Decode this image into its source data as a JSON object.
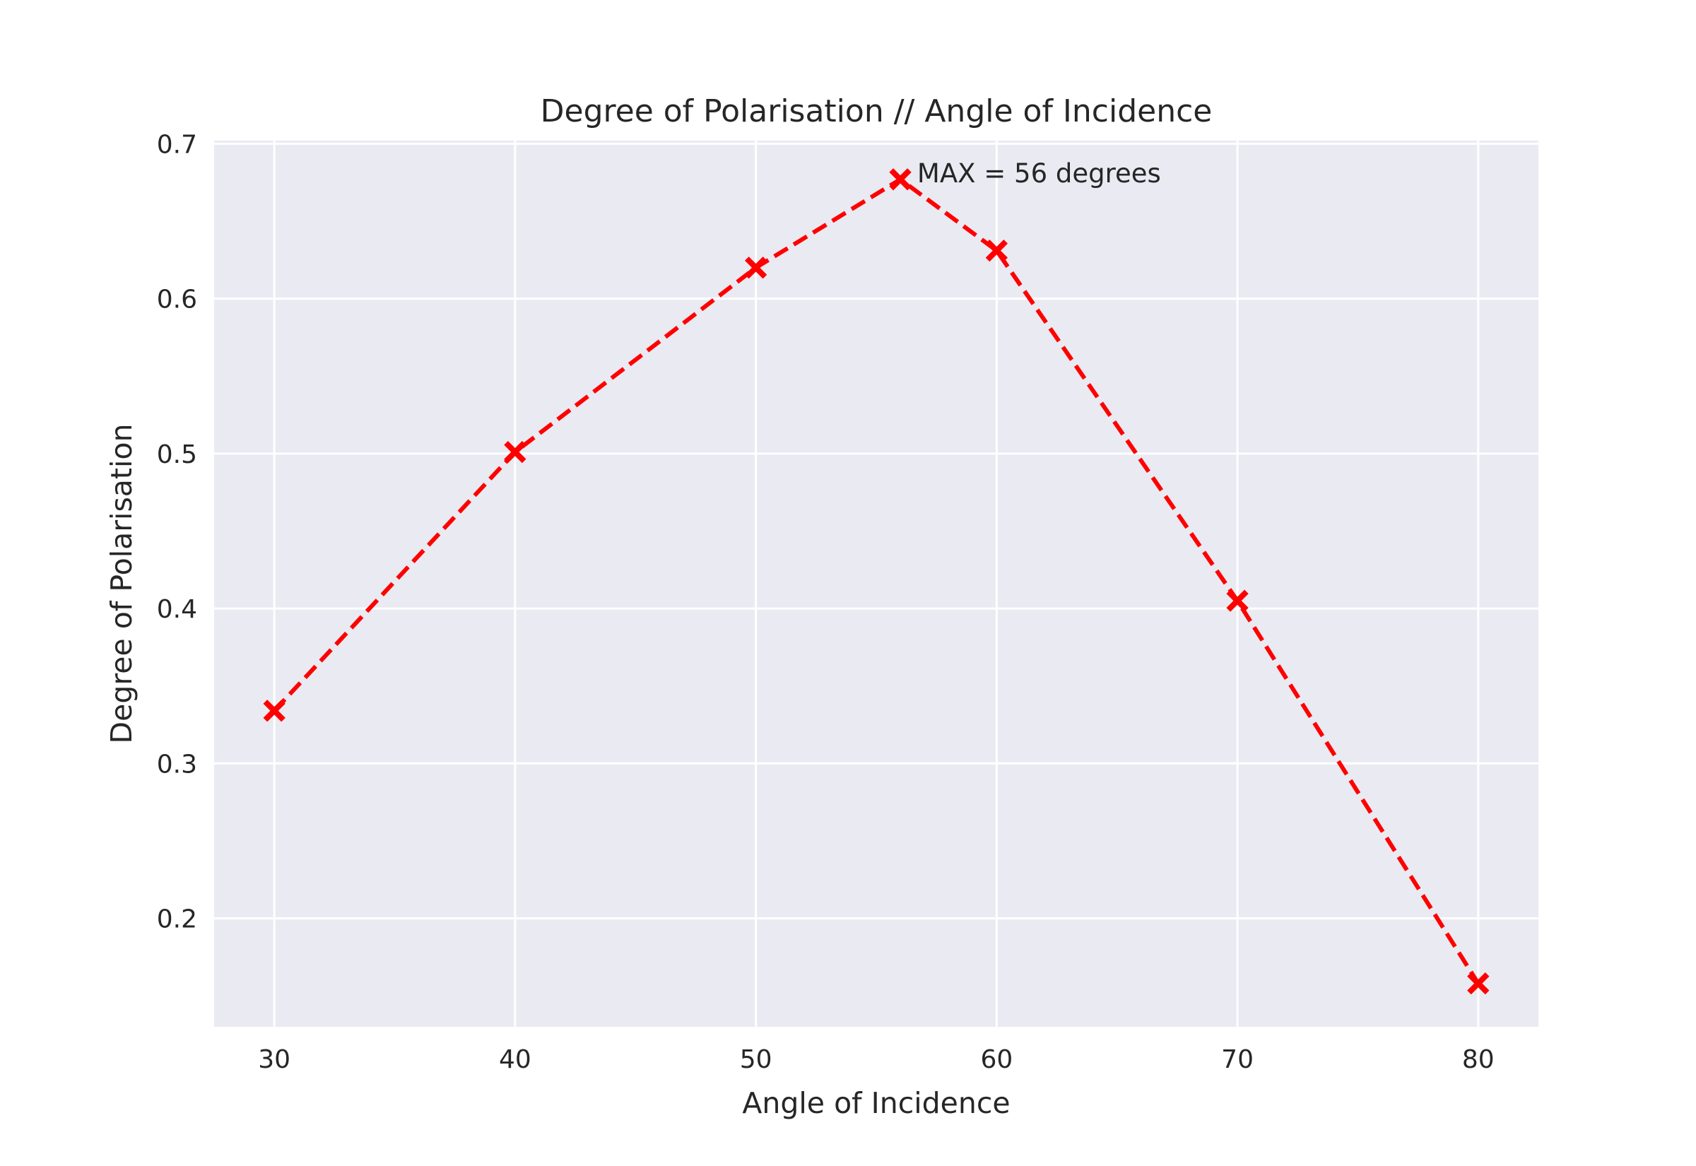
{
  "chart_data": {
    "type": "line",
    "title": "Degree of Polarisation // Angle of Incidence",
    "xlabel": "Angle of Incidence",
    "ylabel": "Degree of Polarisation",
    "x_ticks": [
      30,
      40,
      50,
      60,
      70,
      80
    ],
    "y_ticks": [
      0.2,
      0.3,
      0.4,
      0.5,
      0.6,
      0.7
    ],
    "xlim": [
      27.5,
      82.5
    ],
    "ylim": [
      0.13,
      0.702
    ],
    "grid": true,
    "series": [
      {
        "x": [
          30,
          40,
          50,
          56,
          60,
          70,
          80
        ],
        "y": [
          0.334,
          0.501,
          0.62,
          0.677,
          0.631,
          0.405,
          0.158
        ],
        "color": "#ff0000",
        "line_style": "dashed",
        "marker": "x"
      }
    ],
    "annotations": [
      {
        "text": "MAX = 56 degrees",
        "x": 56.7,
        "y": 0.681
      }
    ],
    "background": "#eaeaf2",
    "grid_color": "#ffffff"
  }
}
